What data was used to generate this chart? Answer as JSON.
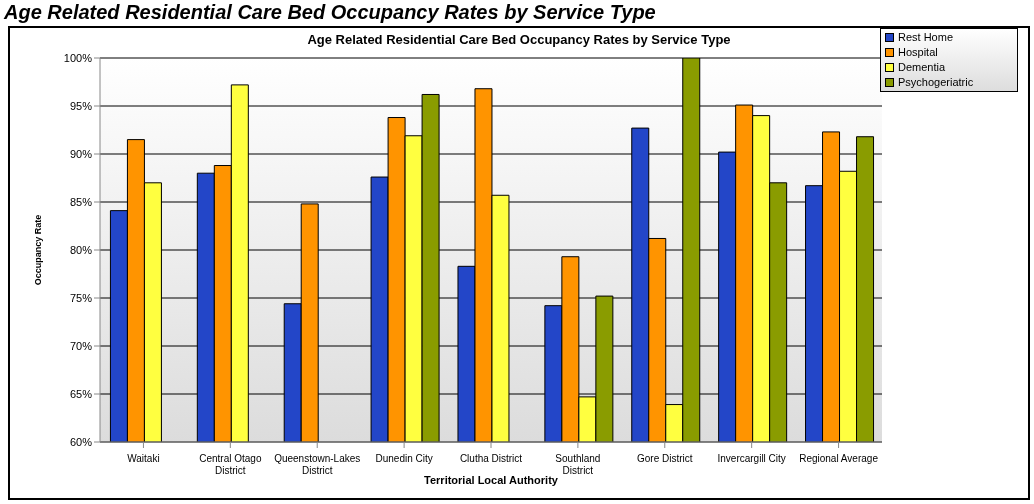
{
  "chart_data": {
    "type": "bar",
    "title": "Age Related Residential Care Bed Occupancy Rates by Service Type",
    "subtitle": "Age Related Residential Care Bed Occupancy Rates by Service Type",
    "xlabel": "Territorial Local Authority",
    "ylabel": "Occupancy Rate",
    "categories": [
      "Waitaki",
      "Central Otago District",
      "Queenstown-Lakes District",
      "Dunedin City",
      "Clutha District",
      "Southland District",
      "Gore District",
      "Invercargill City",
      "Regional Average"
    ],
    "series": [
      {
        "name": "Rest Home",
        "color": "#2346c8",
        "values": [
          84.1,
          88.0,
          74.4,
          87.6,
          78.3,
          74.2,
          92.7,
          90.2,
          86.7
        ]
      },
      {
        "name": "Hospital",
        "color": "#ff9400",
        "values": [
          91.5,
          88.8,
          84.8,
          93.8,
          96.8,
          79.3,
          81.2,
          95.1,
          92.3
        ]
      },
      {
        "name": "Dementia",
        "color": "#ffff40",
        "values": [
          87.0,
          97.2,
          null,
          91.9,
          85.7,
          64.7,
          63.9,
          94.0,
          88.2
        ]
      },
      {
        "name": "Psychogeriatric",
        "color": "#8a9c00",
        "values": [
          null,
          null,
          null,
          96.2,
          null,
          75.2,
          100,
          87.0,
          91.8
        ]
      }
    ],
    "ylim": [
      60,
      100
    ],
    "yticks": [
      {
        "value": 60,
        "label": "60%"
      },
      {
        "value": 65,
        "label": "65%"
      },
      {
        "value": 70,
        "label": "70%"
      },
      {
        "value": 75,
        "label": "75%"
      },
      {
        "value": 80,
        "label": "80%"
      },
      {
        "value": 85,
        "label": "85%"
      },
      {
        "value": 90,
        "label": "90%"
      },
      {
        "value": 95,
        "label": "95%"
      },
      {
        "value": 100,
        "label": "100%"
      }
    ],
    "grid": "y",
    "legend": "top right"
  }
}
